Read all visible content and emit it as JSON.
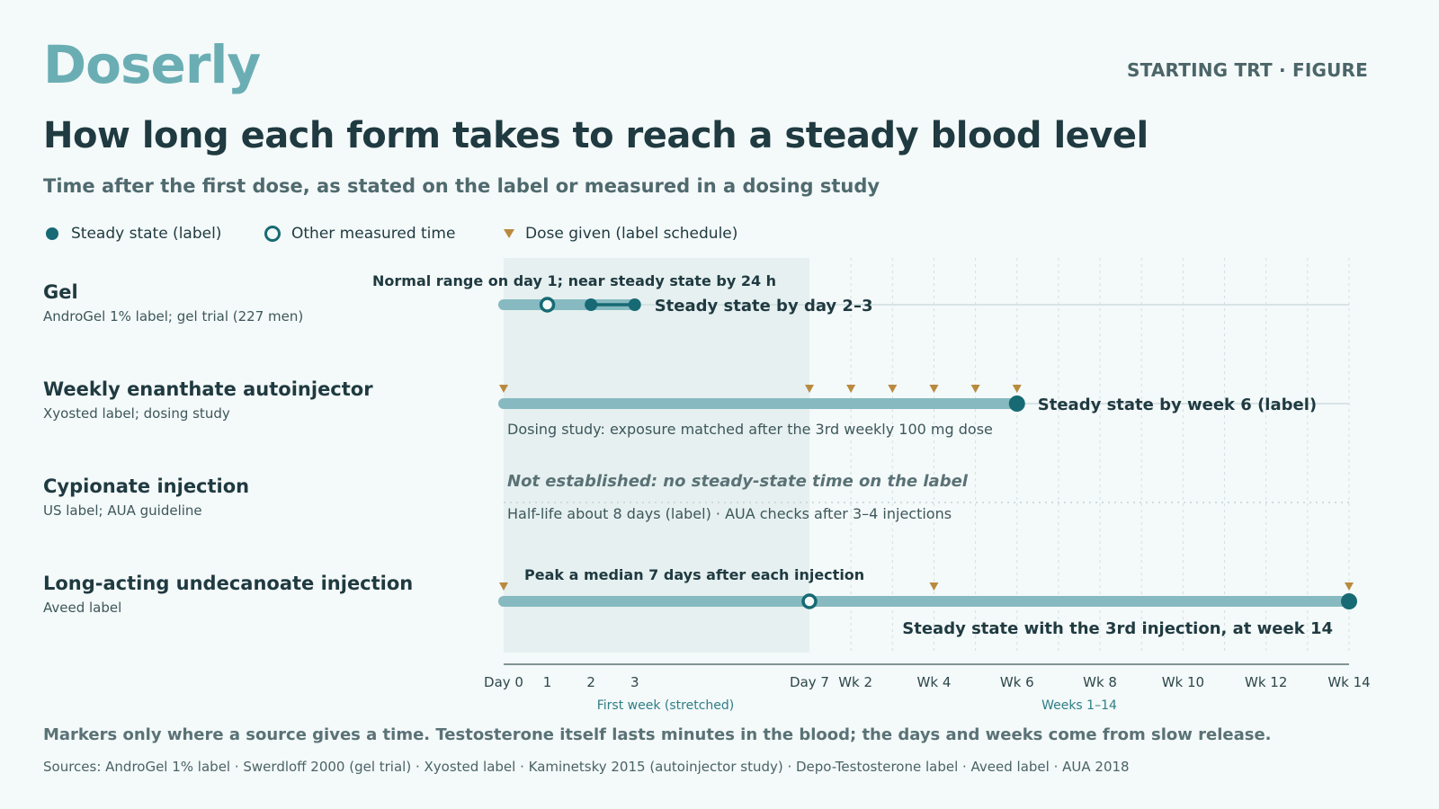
{
  "brand": "Doserly",
  "eyebrow": "STARTING TRT · FIGURE",
  "title": "How long each form takes to reach a steady blood level",
  "subtitle": "Time after the first dose, as stated on the label or measured in a dosing study",
  "legend": {
    "steady": "Steady state (label)",
    "other": "Other measured time",
    "dose": "Dose given (label schedule)"
  },
  "footnote": "Markers only where a source gives a time. Testosterone itself lasts minutes in the blood; the days and weeks come from slow release.",
  "sources": "Sources: AndroGel 1% label · Swerdloff 2000 (gel trial) · Xyosted label · Kaminetsky 2015 (autoinjector study) · Depo-Testosterone label · Aveed label · AUA 2018",
  "colors": {
    "bar": "#86bac0",
    "marker": "#176a74",
    "dose": "#b98a3e",
    "shade": "#e6f0f0"
  },
  "chart_data": {
    "type": "timeline",
    "x_unit": "days after first dose",
    "axis_segments": [
      {
        "label": "First week (stretched)",
        "range_days": [
          0,
          7
        ]
      },
      {
        "label": "Weeks 1–14",
        "range_days": [
          7,
          98
        ]
      }
    ],
    "ticks": [
      {
        "label": "Day 0",
        "day": 0
      },
      {
        "label": "1",
        "day": 1
      },
      {
        "label": "2",
        "day": 2
      },
      {
        "label": "3",
        "day": 3
      },
      {
        "label": "Day 7",
        "day": 7
      },
      {
        "label": "Wk 2",
        "day": 14
      },
      {
        "label": "Wk 4",
        "day": 28
      },
      {
        "label": "Wk 6",
        "day": 42
      },
      {
        "label": "Wk 8",
        "day": 56
      },
      {
        "label": "Wk 10",
        "day": 70
      },
      {
        "label": "Wk 12",
        "day": 84
      },
      {
        "label": "Wk 14",
        "day": 98
      }
    ],
    "rows": [
      {
        "name": "Gel",
        "source": "AndroGel 1% label; gel trial (227 men)",
        "bar_to_day": 3,
        "steady_range_days": [
          2,
          3
        ],
        "steady_label": "Steady state by day 2–3",
        "other_markers": [
          {
            "day": 1,
            "note": "Normal range on day 1; near steady state by 24 h"
          }
        ],
        "doses_days": []
      },
      {
        "name": "Weekly enanthate autoinjector",
        "source": "Xyosted label; dosing study",
        "bar_to_day": 42,
        "steady_day": 42,
        "steady_label": "Steady state by week 6 (label)",
        "note": "Dosing study: exposure matched after the 3rd weekly 100 mg dose",
        "doses_days": [
          0,
          7,
          14,
          21,
          28,
          35,
          42
        ]
      },
      {
        "name": "Cypionate injection",
        "source": "US label; AUA guideline",
        "not_established": "Not established: no steady-state time on the label",
        "note": "Half-life about 8 days (label) · AUA checks after 3–4 injections",
        "doses_days": []
      },
      {
        "name": "Long-acting undecanoate injection",
        "source": "Aveed label",
        "bar_to_day": 98,
        "steady_day": 98,
        "steady_label": "Steady state with the 3rd injection, at week 14",
        "other_markers": [
          {
            "day": 7,
            "note": "Peak a median 7 days after each injection"
          }
        ],
        "doses_days": [
          0,
          28,
          98
        ]
      }
    ]
  }
}
